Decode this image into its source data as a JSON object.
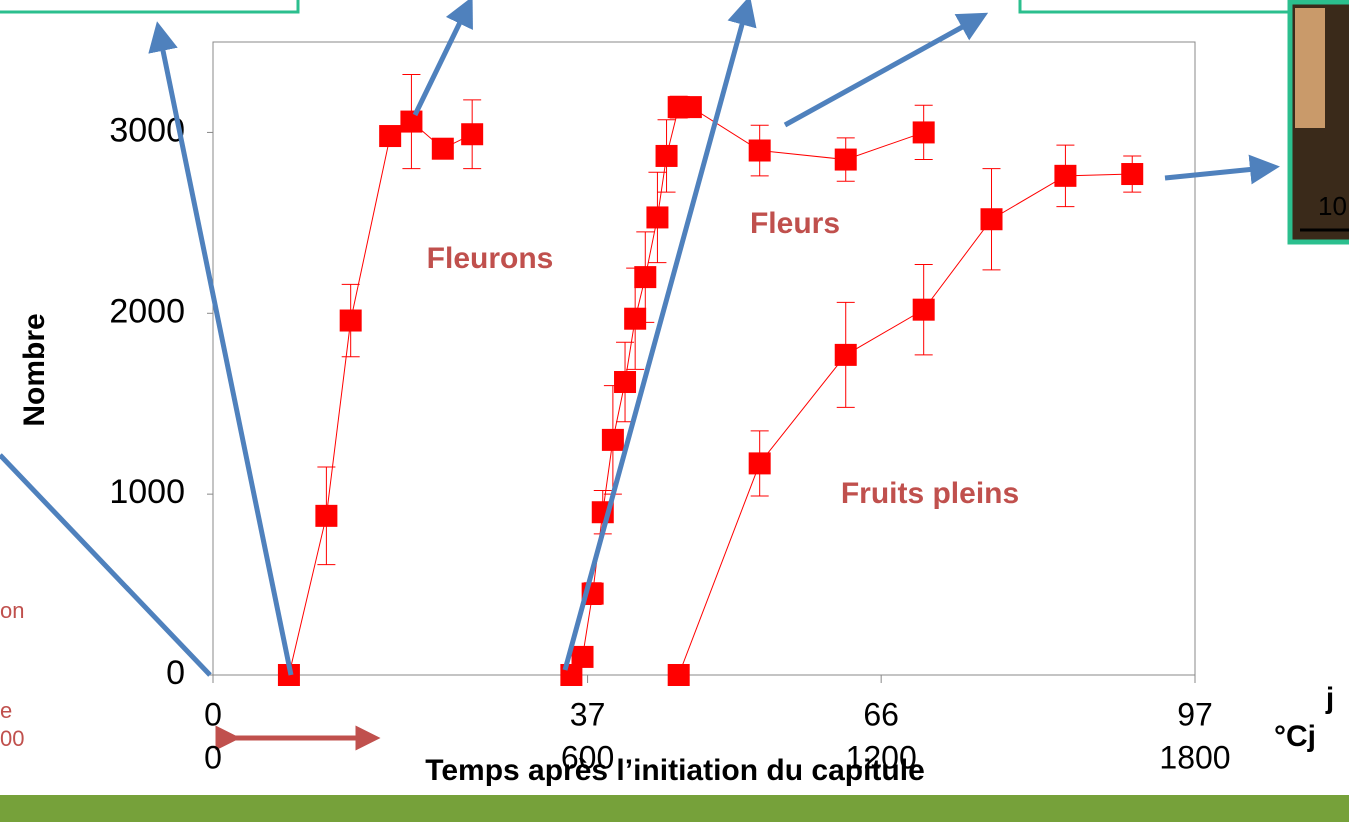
{
  "chart_data": {
    "type": "line",
    "ylabel": "Nombre",
    "xlabel": "Temps après l’initiation du capitule",
    "x_unit": "j",
    "x2_unit": "°Cj",
    "xlim": [
      0,
      97
    ],
    "ylim": [
      0,
      3500
    ],
    "xticks": [
      0,
      37,
      66,
      97
    ],
    "x2ticks": [
      0,
      {
        "value": 37,
        "label": "600"
      },
      {
        "value": 66,
        "label": "1200"
      },
      {
        "value": 97,
        "label": "1800"
      }
    ],
    "yticks": [
      0,
      1000,
      2000,
      3000
    ],
    "series": [
      {
        "name": "Fleurons",
        "color": "#ff0000",
        "x": [
          7.5,
          11.2,
          13.6,
          17.5,
          19.6,
          22.7,
          25.6
        ],
        "values": [
          0,
          880,
          1960,
          2980,
          3060,
          2910,
          2990
        ],
        "errors": [
          0,
          270,
          200,
          50,
          260,
          30,
          190
        ]
      },
      {
        "name": "Fleurs",
        "color": "#ff0000",
        "x": [
          35.4,
          36.5,
          37.5,
          38.5,
          39.5,
          40.7,
          41.7,
          42.7,
          43.9,
          44.8,
          46.0,
          47.2,
          54.0,
          62.5,
          70.2
        ],
        "values": [
          0,
          100,
          450,
          900,
          1300,
          1620,
          1970,
          2200,
          2530,
          2870,
          3140,
          3140,
          2900,
          2850,
          3000
        ],
        "errors": [
          0,
          30,
          60,
          120,
          300,
          220,
          280,
          250,
          250,
          200,
          60,
          30,
          140,
          120,
          150
        ]
      },
      {
        "name": "Fruits pleins",
        "color": "#ff0000",
        "x": [
          46.0,
          54.0,
          62.5,
          70.2,
          76.9,
          84.2,
          90.8
        ],
        "values": [
          0,
          1170,
          1770,
          2020,
          2520,
          2760,
          2770
        ],
        "errors": [
          0,
          180,
          290,
          250,
          280,
          170,
          100
        ]
      }
    ]
  },
  "slide": {
    "fragments": [
      "on",
      "e",
      "00"
    ],
    "photo_label": "10"
  }
}
